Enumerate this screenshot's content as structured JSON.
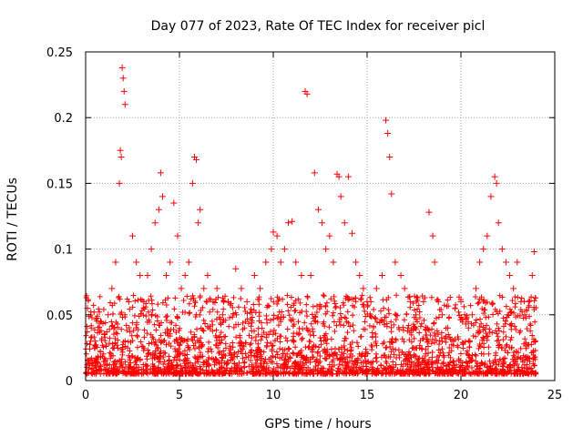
{
  "chart_data": {
    "type": "scatter",
    "title": "Day 077 of 2023, Rate Of TEC Index for receiver picl",
    "xlabel": "GPS time / hours",
    "ylabel": "ROTI / TECUs",
    "xlim": [
      0,
      25
    ],
    "ylim": [
      0,
      0.25
    ],
    "xticks": [
      0,
      5,
      10,
      15,
      20,
      25
    ],
    "yticks": [
      0,
      0.05,
      0.1,
      0.15,
      0.2,
      0.25
    ],
    "xtick_labels": [
      "0",
      "5",
      "10",
      "15",
      "20",
      "25"
    ],
    "ytick_labels": [
      "0",
      "0.05",
      "0.1",
      "0.15",
      "0.2",
      "0.25"
    ],
    "grid": true,
    "marker": "plus",
    "color": "#ff0000",
    "series": [
      {
        "x": [
          0.1,
          0.3,
          0.5,
          0.8,
          1.0,
          1.2,
          1.4,
          1.6,
          1.8,
          1.85,
          1.9,
          1.95,
          2.0,
          2.05,
          2.1,
          2.3,
          2.5,
          2.7,
          2.9,
          3.1,
          3.3,
          3.5,
          3.7,
          3.9,
          4.0,
          4.1,
          4.3,
          4.5,
          4.7,
          4.9,
          5.1,
          5.3,
          5.5,
          5.7,
          5.8,
          5.9,
          6.0,
          6.1,
          6.3,
          6.5,
          6.8,
          7.0,
          7.3,
          7.6,
          8.0,
          8.3,
          8.6,
          9.0,
          9.3,
          9.6,
          9.9,
          10.0,
          10.2,
          10.4,
          10.6,
          10.8,
          11.0,
          11.2,
          11.5,
          11.7,
          11.8,
          12.0,
          12.2,
          12.4,
          12.6,
          12.8,
          13.0,
          13.2,
          13.4,
          13.5,
          13.6,
          13.8,
          14.0,
          14.2,
          14.4,
          14.6,
          14.8,
          15.0,
          15.2,
          15.5,
          15.8,
          16.0,
          16.1,
          16.2,
          16.3,
          16.5,
          16.8,
          17.0,
          17.3,
          17.6,
          18.0,
          18.3,
          18.5,
          18.6,
          18.8,
          19.0,
          19.3,
          19.6,
          20.0,
          20.2,
          20.4,
          20.6,
          20.8,
          21.0,
          21.2,
          21.4,
          21.6,
          21.8,
          21.9,
          22.0,
          22.2,
          22.4,
          22.6,
          22.8,
          23.0,
          23.2,
          23.4,
          23.6,
          23.8,
          23.9
        ],
        "y": [
          0.055,
          0.04,
          0.03,
          0.045,
          0.035,
          0.05,
          0.07,
          0.09,
          0.15,
          0.175,
          0.17,
          0.238,
          0.23,
          0.22,
          0.21,
          0.06,
          0.11,
          0.09,
          0.08,
          0.06,
          0.08,
          0.1,
          0.12,
          0.13,
          0.158,
          0.14,
          0.08,
          0.09,
          0.135,
          0.11,
          0.07,
          0.08,
          0.09,
          0.15,
          0.17,
          0.168,
          0.12,
          0.13,
          0.07,
          0.08,
          0.06,
          0.07,
          0.05,
          0.06,
          0.085,
          0.07,
          0.06,
          0.08,
          0.07,
          0.09,
          0.1,
          0.113,
          0.11,
          0.09,
          0.1,
          0.12,
          0.121,
          0.09,
          0.08,
          0.22,
          0.218,
          0.08,
          0.158,
          0.13,
          0.12,
          0.1,
          0.11,
          0.09,
          0.157,
          0.155,
          0.14,
          0.12,
          0.155,
          0.112,
          0.09,
          0.08,
          0.07,
          0.06,
          0.06,
          0.07,
          0.08,
          0.198,
          0.188,
          0.17,
          0.142,
          0.09,
          0.08,
          0.07,
          0.06,
          0.05,
          0.06,
          0.128,
          0.11,
          0.09,
          0.06,
          0.05,
          0.04,
          0.03,
          0.06,
          0.05,
          0.04,
          0.05,
          0.07,
          0.09,
          0.1,
          0.11,
          0.14,
          0.155,
          0.15,
          0.12,
          0.1,
          0.09,
          0.08,
          0.07,
          0.09,
          0.06,
          0.05,
          0.06,
          0.08,
          0.098
        ]
      }
    ]
  }
}
